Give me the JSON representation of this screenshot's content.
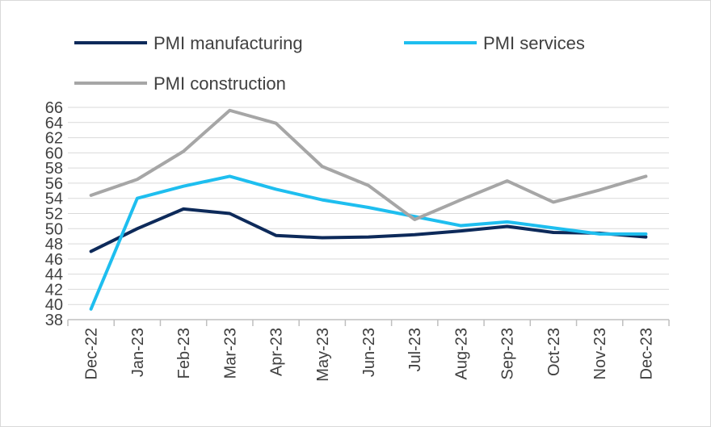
{
  "chart_data": {
    "type": "line",
    "title": "",
    "xlabel": "",
    "ylabel": "",
    "categories": [
      "Dec-22",
      "Jan-23",
      "Feb-23",
      "Mar-23",
      "Apr-23",
      "May-23",
      "Jun-23",
      "Jul-23",
      "Aug-23",
      "Sep-23",
      "Oct-23",
      "Nov-23",
      "Dec-23"
    ],
    "ylim": [
      38,
      66
    ],
    "ytick_step": 2,
    "y_ticks": [
      "38",
      "40",
      "42",
      "44",
      "46",
      "48",
      "50",
      "52",
      "54",
      "56",
      "58",
      "60",
      "62",
      "64",
      "66"
    ],
    "grid": true,
    "legend_position": "top",
    "series": [
      {
        "name": "PMI manufacturing",
        "color": "#0d2a5a",
        "values": [
          47.0,
          50.0,
          52.6,
          52.0,
          49.1,
          48.8,
          48.9,
          49.2,
          49.7,
          50.3,
          49.5,
          49.4,
          48.9
        ]
      },
      {
        "name": "PMI services",
        "color": "#1ebeef",
        "values": [
          39.4,
          54.0,
          55.6,
          56.9,
          55.2,
          53.8,
          52.8,
          51.6,
          50.4,
          50.9,
          50.1,
          49.3,
          49.3
        ]
      },
      {
        "name": "PMI construction",
        "color": "#a6a6a6",
        "values": [
          54.4,
          56.5,
          60.2,
          65.6,
          63.9,
          58.2,
          55.7,
          51.2,
          53.8,
          56.3,
          53.5,
          55.1,
          56.9
        ]
      }
    ]
  }
}
